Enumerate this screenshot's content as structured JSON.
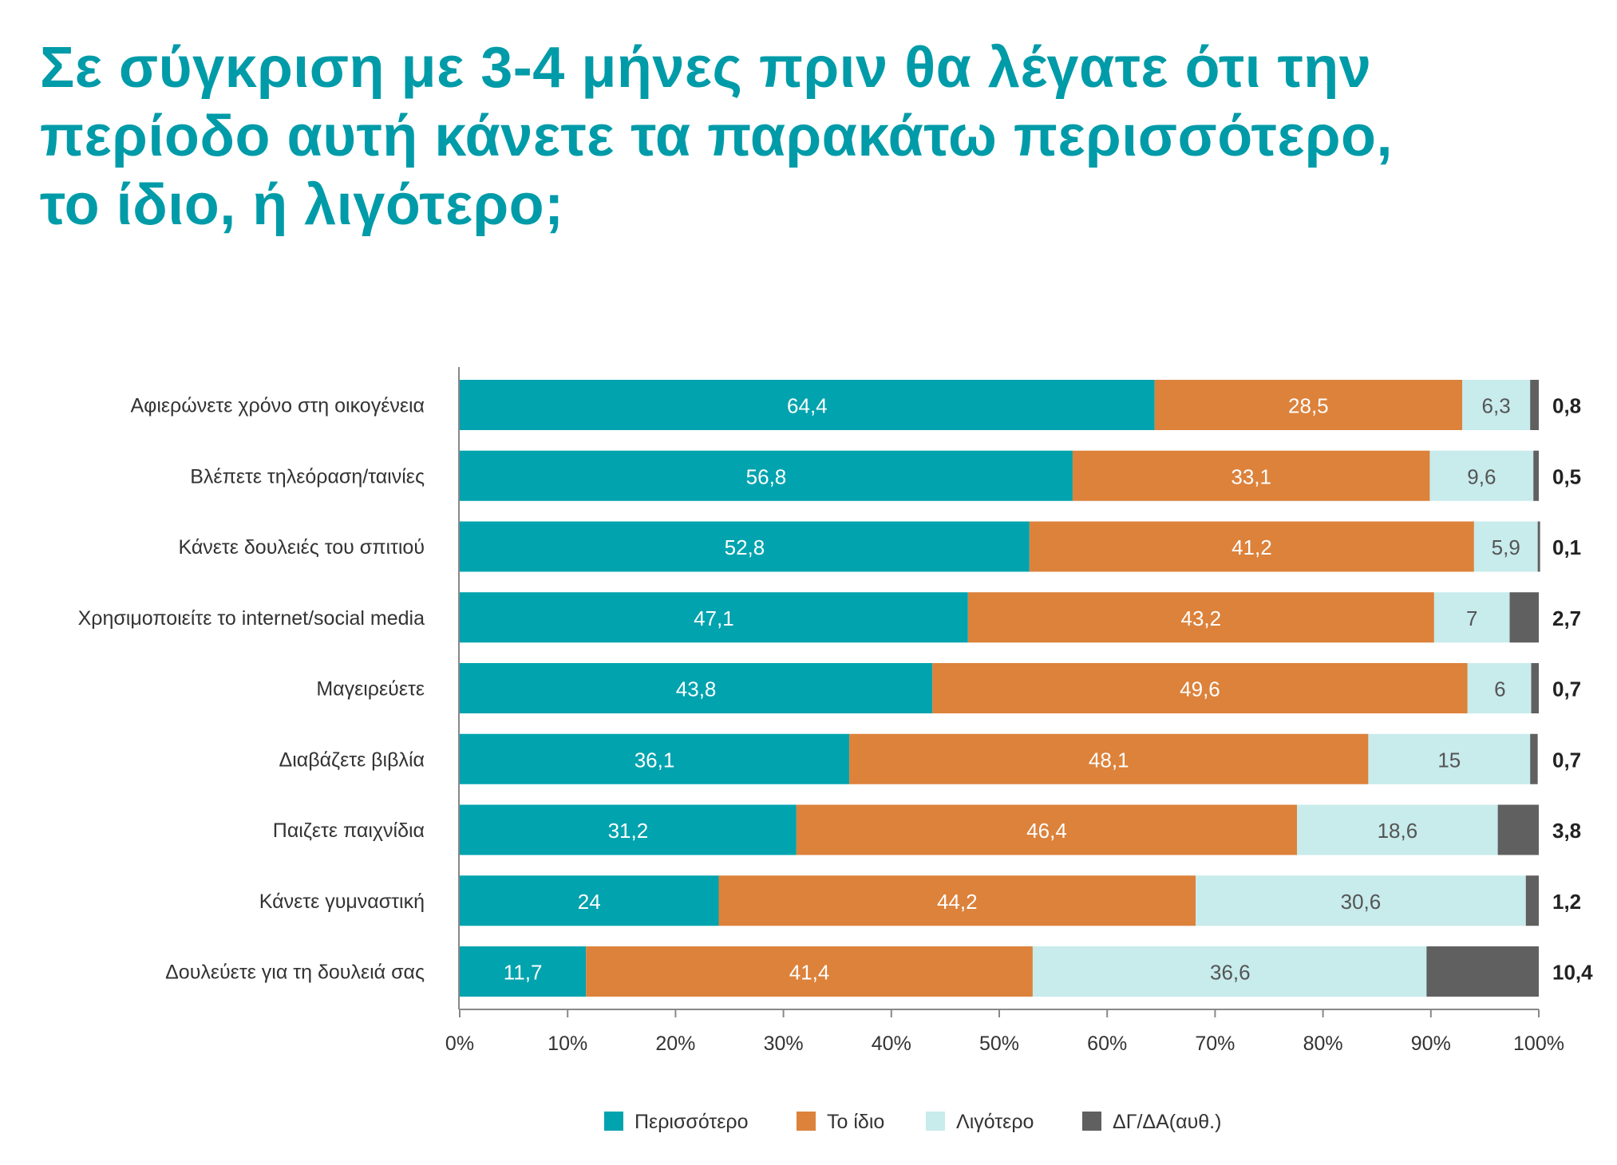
{
  "title": {
    "lines": [
      "Σε σύγκριση με 3-4 μήνες πριν θα λέγατε ότι την",
      "περίοδο αυτή κάνετε τα παρακάτω περισσότερο,",
      "το ίδιο, ή λιγότερο;"
    ]
  },
  "colors": {
    "title": "#009ba8",
    "series": [
      "#00a3ae",
      "#dc823b",
      "#c8ebec",
      "#606060"
    ],
    "inside_text": [
      "#ffffff",
      "#ffffff",
      "#555555"
    ]
  },
  "chart_data": {
    "type": "bar",
    "orientation": "horizontal",
    "stacked": "percent",
    "title": "Σε σύγκριση με 3-4 μήνες πριν θα λέγατε ότι την περίοδο αυτή κάνετε τα παρακάτω περισσότερο, το ίδιο, ή λιγότερο;",
    "xlabel": "",
    "ylabel": "",
    "xlim": [
      0,
      100
    ],
    "x_ticks": [
      "0%",
      "10%",
      "20%",
      "30%",
      "40%",
      "50%",
      "60%",
      "70%",
      "80%",
      "90%",
      "100%"
    ],
    "grid": false,
    "legend_position": "bottom",
    "categories": [
      "Αφιερώνετε χρόνο στη οικογένεια",
      "Βλέπετε τηλεόραση/ταινίες",
      "Κάνετε δουλειές του σπιτιού",
      "Χρησιμοποιείτε το internet/social media",
      "Μαγειρεύετε",
      "Διαβάζετε βιβλία",
      "Παιζετε παιχνίδια",
      "Κάνετε γυμναστική",
      "Δουλεύετε για τη δουλειά σας"
    ],
    "series": [
      {
        "name": "Περισσότερο",
        "values": [
          64.4,
          56.8,
          52.8,
          47.1,
          43.8,
          36.1,
          31.2,
          24,
          11.7
        ],
        "labels": [
          "64,4",
          "56,8",
          "52,8",
          "47,1",
          "43,8",
          "36,1",
          "31,2",
          "24",
          "11,7"
        ]
      },
      {
        "name": "Το ίδιο",
        "values": [
          28.5,
          33.1,
          41.2,
          43.2,
          49.6,
          48.1,
          46.4,
          44.2,
          41.4
        ],
        "labels": [
          "28,5",
          "33,1",
          "41,2",
          "43,2",
          "49,6",
          "48,1",
          "46,4",
          "44,2",
          "41,4"
        ]
      },
      {
        "name": "Λιγότερο",
        "values": [
          6.3,
          9.6,
          5.9,
          7,
          6,
          15,
          18.6,
          30.6,
          36.6
        ],
        "labels": [
          "6,3",
          "9,6",
          "5,9",
          "7",
          "6",
          "15",
          "18,6",
          "30,6",
          "36,6"
        ]
      },
      {
        "name": "ΔΓ/ΔΑ(αυθ.)",
        "values": [
          0.8,
          0.5,
          0.1,
          2.7,
          0.7,
          0.7,
          3.8,
          1.2,
          10.4
        ],
        "labels": [
          "0,8",
          "0,5",
          "0,1",
          "2,7",
          "0,7",
          "0,7",
          "3,8",
          "1,2",
          "10,4"
        ]
      }
    ]
  }
}
